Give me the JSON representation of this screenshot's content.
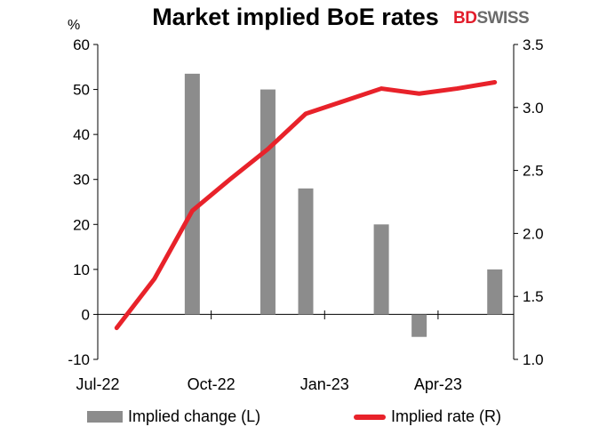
{
  "header": {
    "title": "Market implied BoE rates",
    "logo_part1": "BD",
    "logo_part2": "SWISS",
    "left_unit": "%"
  },
  "legend": {
    "bar_label": "Implied change (L)",
    "line_label": "Implied rate (R)"
  },
  "colors": {
    "bar": "#8c8c8c",
    "line": "#e8222a",
    "axis": "#000000",
    "logo_red": "#e21c2a",
    "logo_gray": "#6b6b6b"
  },
  "chart_data": {
    "type": "bar+line",
    "x_ticks": [
      "Jul-22",
      "Oct-22",
      "Jan-23",
      "Apr-23"
    ],
    "left_axis": {
      "min": -10,
      "max": 60,
      "ticks": [
        -10,
        0,
        10,
        20,
        30,
        40,
        50,
        60
      ]
    },
    "right_axis": {
      "min": 1.0,
      "max": 3.5,
      "ticks": [
        "1.0",
        "1.5",
        "2.0",
        "2.5",
        "3.0",
        "3.5"
      ]
    },
    "series": [
      {
        "name": "Implied change (L)",
        "type": "bar",
        "axis": "left",
        "points": [
          {
            "slot": 2,
            "value": 53.5
          },
          {
            "slot": 4,
            "value": 50
          },
          {
            "slot": 5,
            "value": 28
          },
          {
            "slot": 7,
            "value": 20
          },
          {
            "slot": 8,
            "value": -5
          },
          {
            "slot": 10,
            "value": 10
          }
        ]
      },
      {
        "name": "Implied rate (R)",
        "type": "line",
        "axis": "right",
        "points": [
          {
            "slot": 0,
            "value": 1.25
          },
          {
            "slot": 1,
            "value": 1.64
          },
          {
            "slot": 2,
            "value": 2.18
          },
          {
            "slot": 3,
            "value": 2.43
          },
          {
            "slot": 4,
            "value": 2.67
          },
          {
            "slot": 5,
            "value": 2.95
          },
          {
            "slot": 6,
            "value": 3.05
          },
          {
            "slot": 7,
            "value": 3.15
          },
          {
            "slot": 8,
            "value": 3.11
          },
          {
            "slot": 9,
            "value": 3.15
          },
          {
            "slot": 10,
            "value": 3.2
          }
        ]
      }
    ],
    "slot_count": 11
  }
}
